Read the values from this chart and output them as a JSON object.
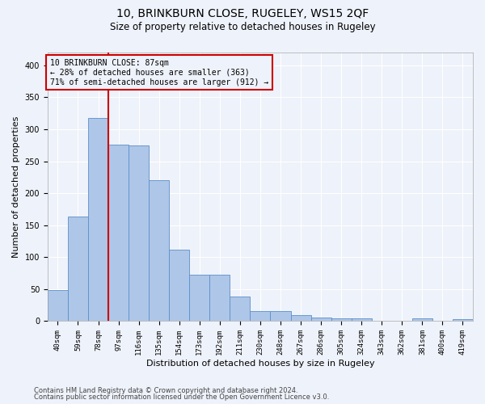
{
  "title1": "10, BRINKBURN CLOSE, RUGELEY, WS15 2QF",
  "title2": "Size of property relative to detached houses in Rugeley",
  "xlabel": "Distribution of detached houses by size in Rugeley",
  "ylabel": "Number of detached properties",
  "footer1": "Contains HM Land Registry data © Crown copyright and database right 2024.",
  "footer2": "Contains public sector information licensed under the Open Government Licence v3.0.",
  "annotation_line1": "10 BRINKBURN CLOSE: 87sqm",
  "annotation_line2": "← 28% of detached houses are smaller (363)",
  "annotation_line3": "71% of semi-detached houses are larger (912) →",
  "bar_color": "#aec6e8",
  "bar_edge_color": "#5b8fc9",
  "line_color": "#cc0000",
  "annotation_box_edge": "#cc0000",
  "categories": [
    "40sqm",
    "59sqm",
    "78sqm",
    "97sqm",
    "116sqm",
    "135sqm",
    "154sqm",
    "173sqm",
    "192sqm",
    "211sqm",
    "230sqm",
    "248sqm",
    "267sqm",
    "286sqm",
    "305sqm",
    "324sqm",
    "343sqm",
    "362sqm",
    "381sqm",
    "400sqm",
    "419sqm"
  ],
  "values": [
    48,
    163,
    318,
    276,
    275,
    221,
    112,
    72,
    72,
    39,
    16,
    16,
    9,
    6,
    5,
    5,
    0,
    0,
    5,
    0,
    3
  ],
  "ylim": [
    0,
    420
  ],
  "property_bin_index": 2,
  "background_color": "#eef2fa",
  "grid_color": "#ffffff",
  "figsize": [
    6.0,
    5.0
  ],
  "dpi": 100,
  "title1_fontsize": 10,
  "title2_fontsize": 8.5,
  "ylabel_fontsize": 8,
  "xlabel_fontsize": 8,
  "tick_fontsize": 6.5,
  "ann_fontsize": 7,
  "footer_fontsize": 6
}
